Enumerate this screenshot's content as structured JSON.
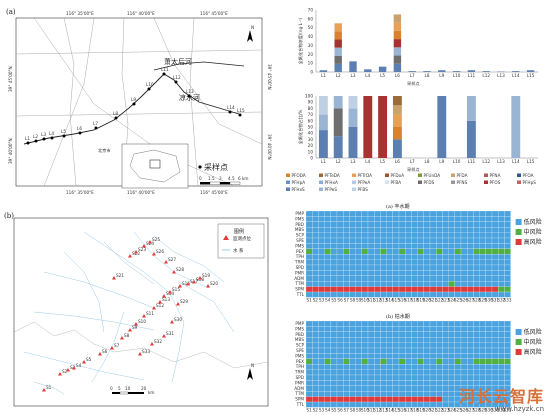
{
  "panel_a": {
    "label": "(a)",
    "lon_ticks": [
      "116° 35'00\"E",
      "116° 40'00\"E",
      "116° 45'00\"E"
    ],
    "lat_left": [
      "39° 45'00\"N",
      "39° 40'00\"N"
    ],
    "lat_right": [
      "39° 45'00\"N",
      "39° 40'00\"N"
    ],
    "river_xiaotaihou": "萧太后河",
    "river_liangshui": "凉水河",
    "station_area": "北京市",
    "sites": [
      "L1",
      "L2",
      "L3",
      "L4",
      "L5",
      "L6",
      "L7",
      "L8",
      "L9",
      "L10",
      "L11",
      "L12",
      "L13",
      "L14",
      "L15"
    ],
    "legend_title": "采样点",
    "scale_ticks": [
      "0",
      "1.5",
      "3",
      "4.5",
      "6 km"
    ],
    "north": "N"
  },
  "chart_top": {
    "ylabel": "全氟化合物浓度/(ng·L⁻¹)",
    "xlabel": "采样点",
    "y_ticks": [
      "0",
      "10",
      "20",
      "30",
      "40",
      "50",
      "60",
      "70"
    ],
    "sites": [
      "L1",
      "L2",
      "L3",
      "L4",
      "L5",
      "L6",
      "L7",
      "L8",
      "L9",
      "L10",
      "L11",
      "L12",
      "L13",
      "L14",
      "L15"
    ]
  },
  "chart_bottom": {
    "ylabel": "全氟化合物占比/%",
    "xlabel": "采样点",
    "y_ticks": [
      "0",
      "10",
      "20",
      "30",
      "40",
      "50",
      "60",
      "70",
      "80",
      "90",
      "100"
    ]
  },
  "legend_compounds": [
    {
      "name": "PFODA",
      "color": "#d9822b"
    },
    {
      "name": "PFTeDA",
      "color": "#9c6b3a"
    },
    {
      "name": "PFTrDA",
      "color": "#e6a157"
    },
    {
      "name": "PFDoA",
      "color": "#a0522d"
    },
    {
      "name": "PFUnDA",
      "color": "#7a9a3a"
    },
    {
      "name": "PFDA",
      "color": "#c9a36b"
    },
    {
      "name": "PFNA",
      "color": "#b05a5a"
    },
    {
      "name": "PFOA",
      "color": "#2f5597"
    },
    {
      "name": "PFHpA",
      "color": "#6b8fc2"
    },
    {
      "name": "PFHxA",
      "color": "#8aaed6"
    },
    {
      "name": "PFPeA",
      "color": "#b3c9e6"
    },
    {
      "name": "PFBA",
      "color": "#d6e2f0"
    },
    {
      "name": "PFDS",
      "color": "#6e6e6e"
    },
    {
      "name": "PFNS",
      "color": "#999"
    },
    {
      "name": "PFOS",
      "color": "#a83232"
    },
    {
      "name": "PFHpS",
      "color": "#c46060"
    },
    {
      "name": "PFHxS",
      "color": "#5a7fb0"
    },
    {
      "name": "PFPeS",
      "color": "#9ab4d4"
    },
    {
      "name": "PFBS",
      "color": "#c0d0e4"
    }
  ],
  "panel_b": {
    "label": "(b)",
    "legend_title": "图例",
    "legend_site": "监测点位",
    "legend_water": "水  系",
    "scale_ticks": [
      "0",
      "5",
      "10",
      "20"
    ],
    "scale_unit": "km",
    "sites": [
      "S1",
      "S2",
      "S3",
      "S4",
      "S5",
      "S6",
      "S7",
      "S8",
      "S9",
      "S10",
      "S11",
      "S12",
      "S13",
      "S14",
      "S15",
      "S16",
      "S17",
      "S18",
      "S19",
      "S20",
      "S21",
      "S22",
      "S23",
      "S24",
      "S25",
      "S26",
      "S27",
      "S28",
      "S29",
      "S30",
      "S31",
      "S32",
      "S33"
    ],
    "north": "N"
  },
  "heatmap_a": {
    "title": "(a) 丰水期",
    "rows": [
      "PMP",
      "PMS",
      "PBD",
      "MBS",
      "SCP",
      "SPE",
      "PMS",
      "PEX",
      "TPH",
      "TRM",
      "SPD",
      "PMR",
      "ADM",
      "TTM",
      "SPM",
      "TTL"
    ],
    "legend": [
      {
        "name": "低风险",
        "color": "#4aa3df"
      },
      {
        "name": "中风险",
        "color": "#52b043"
      },
      {
        "name": "高风险",
        "color": "#e03a3a"
      }
    ]
  },
  "heatmap_b": {
    "title": "(b) 枯水期",
    "rows": [
      "PMP",
      "PMS",
      "PBD",
      "MBS",
      "SCP",
      "SPE",
      "PMS",
      "PEX",
      "TPH",
      "TRM",
      "SPD",
      "PMR",
      "ADM",
      "TTM",
      "SPM",
      "TTL"
    ],
    "legend": [
      {
        "name": "低风险",
        "color": "#4aa3df"
      },
      {
        "name": "中风险",
        "color": "#52b043"
      },
      {
        "name": "高风险",
        "color": "#e03a3a"
      }
    ]
  },
  "watermark": {
    "cn": "河长云智库",
    "url": "www.hzyzk.cn"
  }
}
